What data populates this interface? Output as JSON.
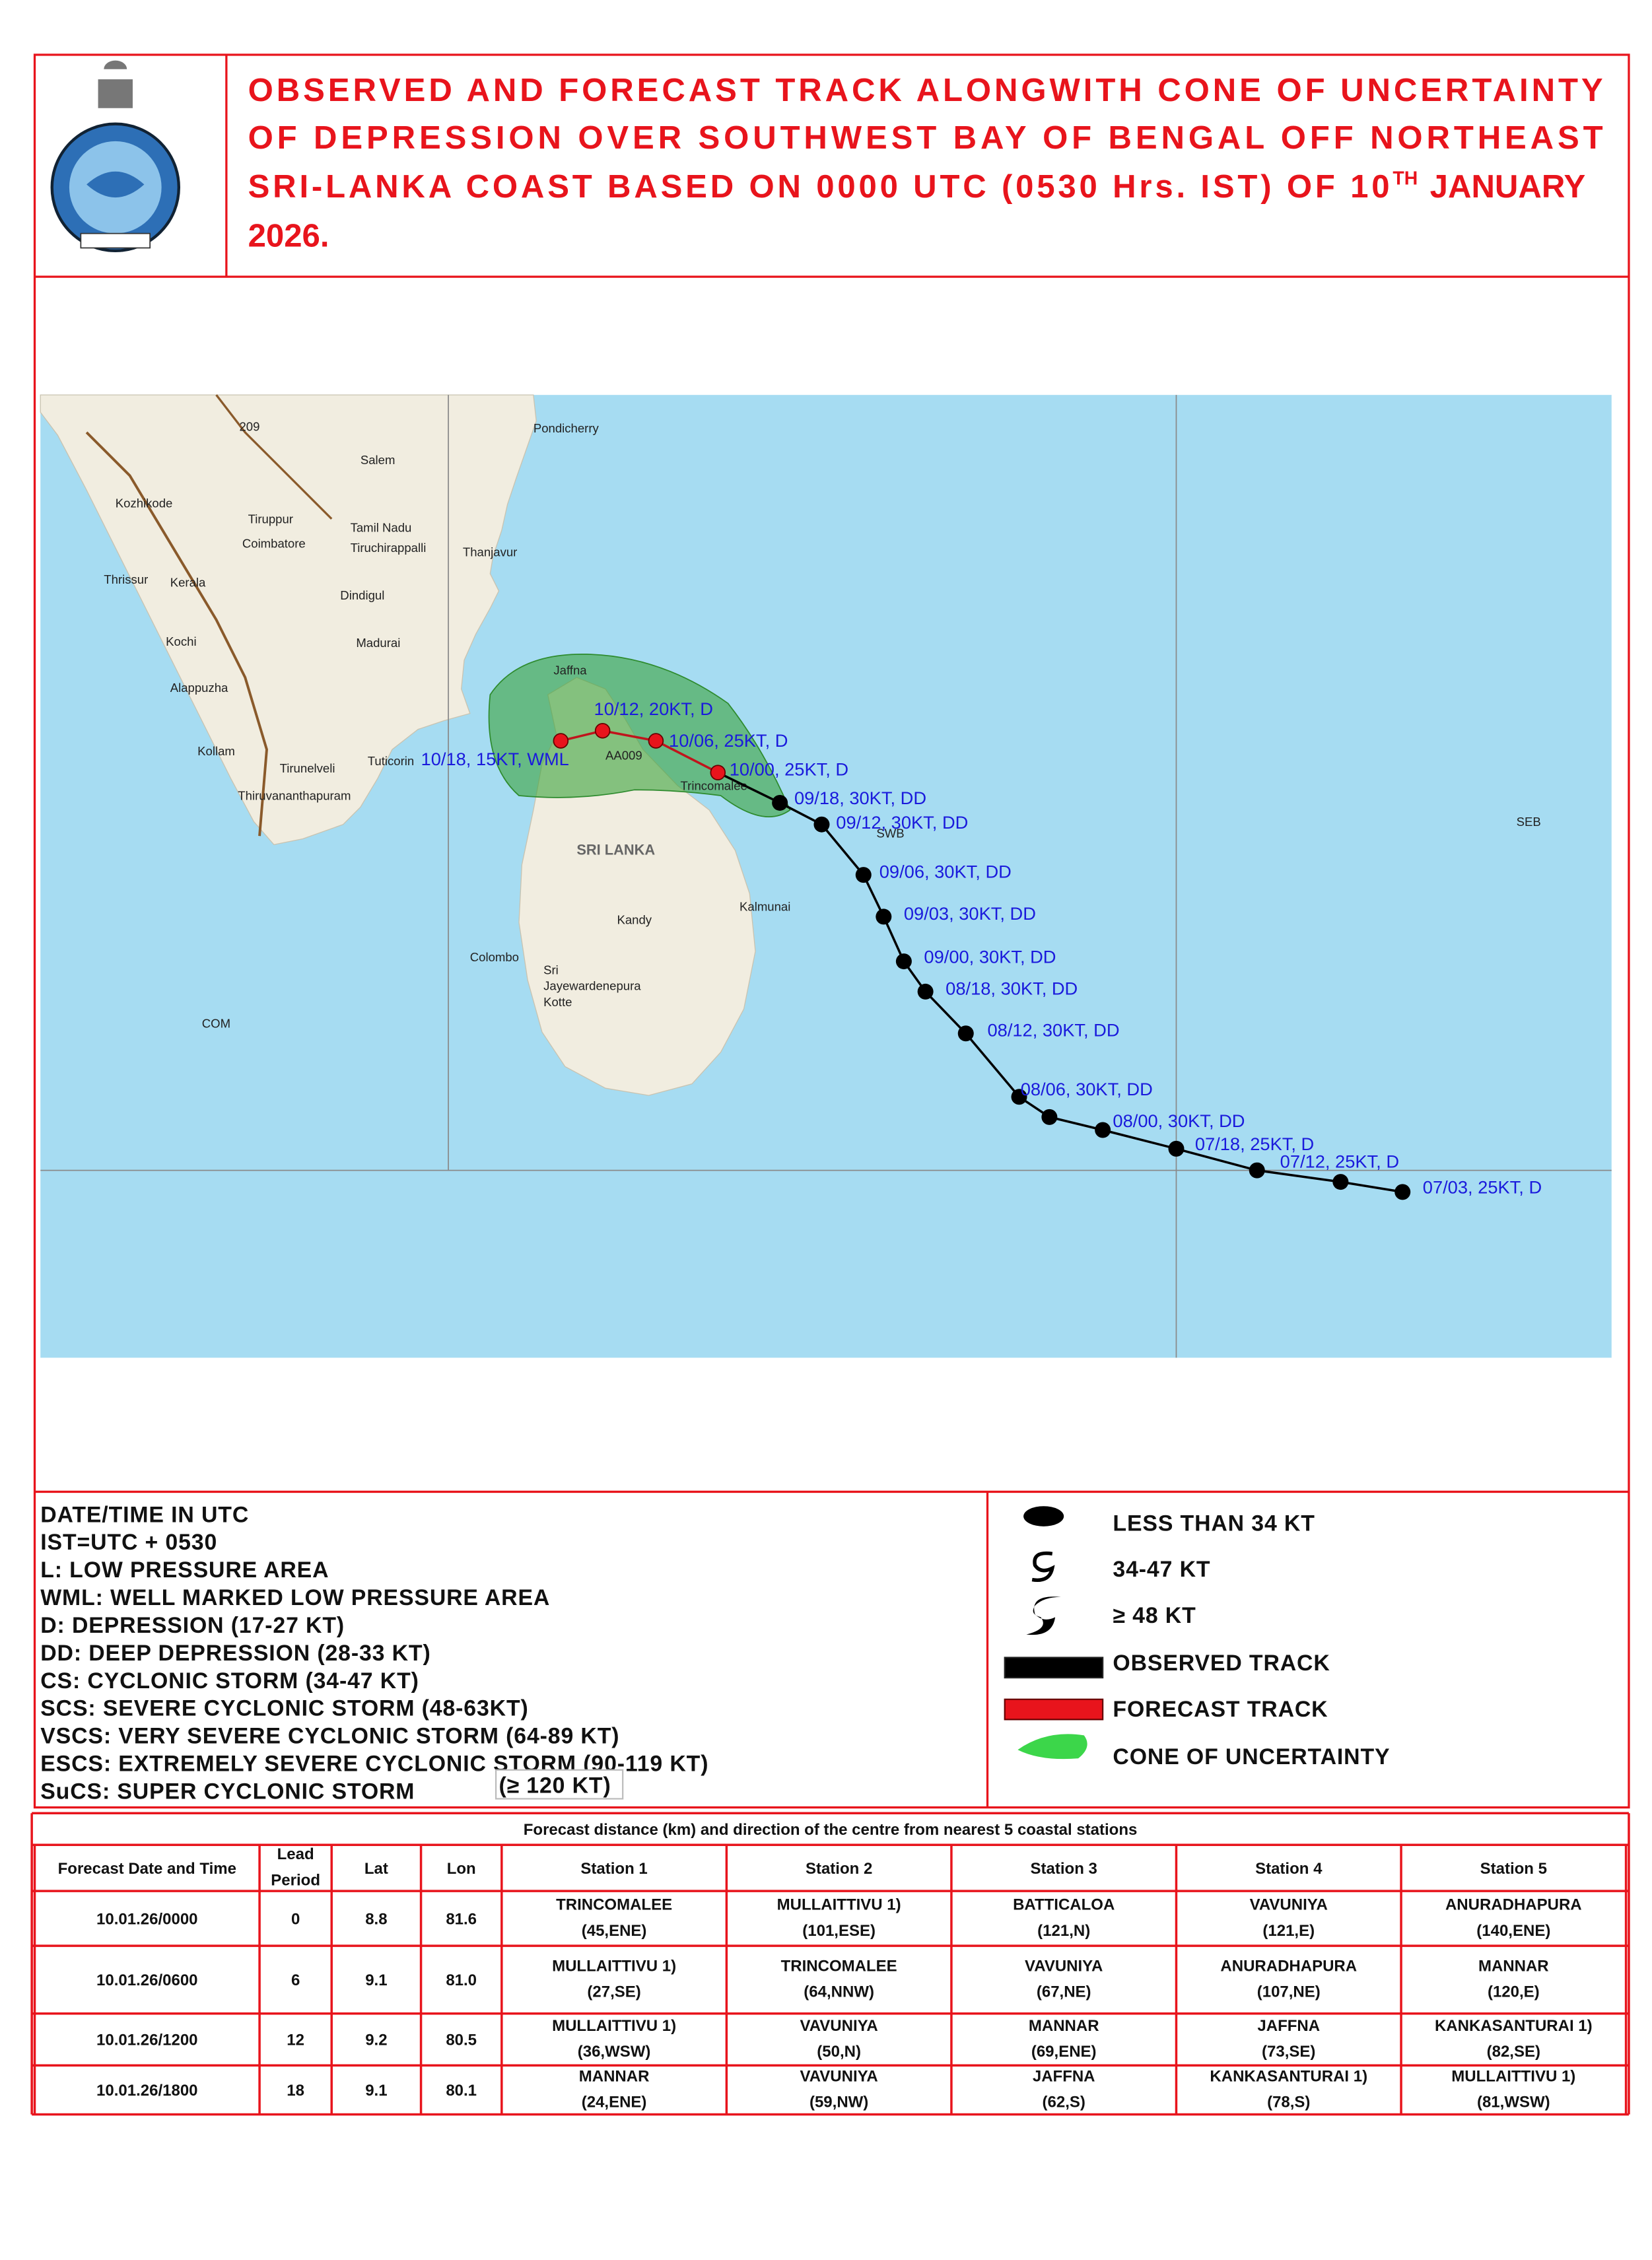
{
  "header": {
    "title_lines": [
      "OBSERVED AND FORECAST TRACK ALONGWITH CONE OF UNCERTAINTY",
      "OF DEPRESSION OVER SOUTHWEST BAY OF BENGAL OFF NORTHEAST"
    ],
    "title_line3": "SRI-LANKA COAST BASED ON 0000 UTC (0530 Hrs. IST) OF 10",
    "title_superscript": "TH",
    "title_line3_end": "JANUARY",
    "title_line4": "2026."
  },
  "map": {
    "places": [
      "Pondicherry",
      "Salem",
      "Kozhikode",
      "Tiruppur",
      "Tamil Nadu",
      "Coimbatore",
      "Tiruchirappalli",
      "Thanjavur",
      "Thrissur",
      "Kerala",
      "Dindigul",
      "Kochi",
      "Madurai",
      "Alappuzha",
      "Jaffna",
      "Kollam",
      "Tirunelveli",
      "Tuticorin",
      "Thiruvananthapuram",
      "Trincomalee",
      "SRI LANKA",
      "Kalmunai",
      "Kandy",
      "Colombo",
      "Sri",
      "Jayewardenepura",
      "Kotte",
      "COM",
      "SWB",
      "SEB",
      "AA009",
      "209"
    ],
    "observed_track": [
      "07/03, 25KT, D",
      "07/12, 25KT, D",
      "07/18, 25KT, D",
      "08/00, 30KT, DD",
      "08/06, 30KT, DD",
      "08/12, 30KT, DD",
      "08/18, 30KT, DD",
      "09/00, 30KT, DD",
      "09/03, 30KT, DD",
      "09/06, 30KT, DD",
      "09/12, 30KT, DD",
      "09/18, 30KT, DD"
    ],
    "forecast_track": [
      "10/00, 25KT, D",
      "10/06, 25KT, D",
      "10/12, 20KT, D",
      "10/18, 15KT, WML"
    ]
  },
  "legend": {
    "definitions": [
      "DATE/TIME  IN UTC",
      "IST=UTC + 0530",
      "L: LOW PRESSURE AREA",
      "WML: WELL MARKED  LOW PRESSURE  AREA",
      "D: DEPRESSION  (17-27  KT)",
      "DD: DEEP DEPRESSION  (28-33  KT)",
      "CS: CYCLONIC  STORM  (34-47  KT)",
      "SCS:  SEVERE  CYCLONIC  STORM  (48-63KT)",
      "VSCS: VERY  SEVERE  CYCLONIC  STORM  (64-89  KT)",
      "ESCS:  EXTREMELY  SEVERE  CYCLONIC  STORM  (90-119  KT)",
      "SuCS: SUPER CYCLONIC STORM"
    ],
    "sucs_range": "(≥ 120 KT)",
    "symbols": [
      "LESS THAN 34 KT",
      "34-47 KT",
      "≥ 48 KT",
      "OBSERVED  TRACK",
      "FORECAST  TRACK",
      "CONE  OF  UNCERTAINTY"
    ]
  },
  "table": {
    "title": "Forecast distance (km)  and direction of the centre from nearest 5 coastal  stations",
    "headers": [
      "Forecast Date and Time",
      [
        "Lead",
        "Period"
      ],
      "Lat",
      "Lon",
      "Station 1",
      "Station 2",
      "Station 3",
      "Station 4",
      "Station 5"
    ],
    "rows": [
      [
        "10.01.26/0000",
        "0",
        "8.8",
        "81.6",
        [
          "TRINCOMALEE",
          "(45,ENE)"
        ],
        [
          "MULLAITTIVU 1)",
          "(101,ESE)"
        ],
        [
          "BATTICALOA",
          "(121,N)"
        ],
        [
          "VAVUNIYA",
          "(121,E)"
        ],
        [
          "ANURADHAPURA",
          "(140,ENE)"
        ]
      ],
      [
        "10.01.26/0600",
        "6",
        "9.1",
        "81.0",
        [
          "MULLAITTIVU 1)",
          "(27,SE)"
        ],
        [
          "TRINCOMALEE",
          "(64,NNW)"
        ],
        [
          "VAVUNIYA",
          "(67,NE)"
        ],
        [
          "ANURADHAPURA",
          "(107,NE)"
        ],
        [
          "MANNAR",
          "(120,E)"
        ]
      ],
      [
        "10.01.26/1200",
        "12",
        "9.2",
        "80.5",
        [
          "MULLAITTIVU 1)",
          "(36,WSW)"
        ],
        [
          "VAVUNIYA",
          "(50,N)"
        ],
        [
          "MANNAR",
          "(69,ENE)"
        ],
        [
          "JAFFNA",
          "(73,SE)"
        ],
        [
          "KANKASANTURAI 1)",
          "(82,SE)"
        ]
      ],
      [
        "10.01.26/1800",
        "18",
        "9.1",
        "80.1",
        [
          "MANNAR",
          "(24,ENE)"
        ],
        [
          "VAVUNIYA",
          "(59,NW)"
        ],
        [
          "JAFFNA",
          "(62,S)"
        ],
        [
          "KANKASANTURAI 1)",
          "(78,S)"
        ],
        [
          "MULLAITTIVU 1)",
          "(81,WSW)"
        ]
      ]
    ]
  }
}
